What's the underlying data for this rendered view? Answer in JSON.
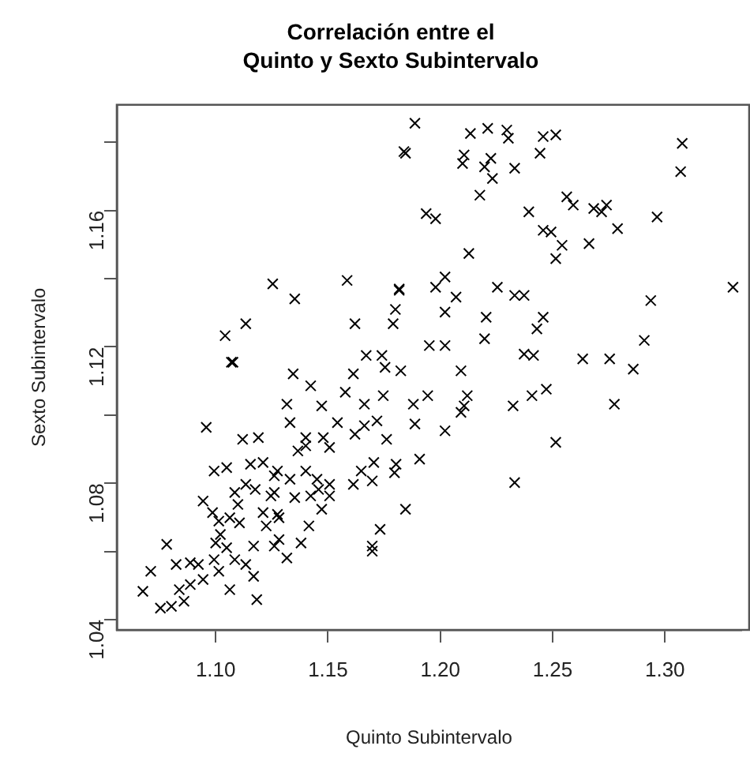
{
  "chart_data": {
    "type": "scatter",
    "title": "Correlación entre el\nQuinto y Sexto Subintervalo",
    "xlabel": "Quinto Subintervalo",
    "ylabel": "Sexto Subintervalo",
    "marker": "cross",
    "grid": false,
    "legend": false,
    "xlim": [
      1.056,
      1.334
    ],
    "ylim": [
      1.037,
      1.191
    ],
    "xticks": [
      {
        "value": 1.1,
        "label": "1.10"
      },
      {
        "value": 1.15,
        "label": "1.15"
      },
      {
        "value": 1.2,
        "label": "1.20"
      },
      {
        "value": 1.25,
        "label": "1.25"
      },
      {
        "value": 1.3,
        "label": "1.30"
      }
    ],
    "yticks": [
      {
        "value": 1.04,
        "label": "1.04"
      },
      {
        "value": 1.06,
        "label": null
      },
      {
        "value": 1.08,
        "label": "1.08"
      },
      {
        "value": 1.1,
        "label": null
      },
      {
        "value": 1.12,
        "label": "1.12"
      },
      {
        "value": 1.14,
        "label": null
      },
      {
        "value": 1.16,
        "label": "1.16"
      },
      {
        "value": 1.18,
        "label": null
      }
    ],
    "series": [
      {
        "color": "#000000",
        "x": [
          1.1838,
          1.1254,
          1.1352,
          1.1585,
          1.162,
          1.1817,
          1.18,
          1.179,
          1.1042,
          1.1134,
          1.1077,
          1.167,
          1.174,
          1.1887,
          1.1845,
          1.2134,
          1.2211,
          1.2296,
          1.2303,
          1.2458,
          1.2514,
          1.2444,
          1.2106,
          1.2099,
          1.2197,
          1.2225,
          1.2232,
          1.2331,
          1.2176,
          1.3077,
          1.307,
          1.1937,
          1.1979,
          1.2563,
          1.2592,
          1.2683,
          1.2718,
          1.274,
          1.2789,
          1.2965,
          1.2394,
          1.2458,
          1.2493,
          1.2542,
          1.2514,
          1.2662,
          1.2127,
          1.3303,
          1.2937,
          1.2908,
          1.2254,
          1.2331,
          1.2373,
          1.1817,
          1.1979,
          1.2021,
          1.207,
          1.2021,
          1.2204,
          1.2197,
          1.243,
          1.2458,
          1.1951,
          1.2021,
          1.2634,
          1.2754,
          1.2373,
          1.2415,
          1.2092,
          1.2859,
          1.212,
          1.2092,
          1.2324,
          1.2408,
          1.2472,
          1.2775,
          1.2514,
          1.2331,
          1.1345,
          1.1423,
          1.1613,
          1.1754,
          1.1824,
          1.1577,
          1.1317,
          1.1472,
          1.1662,
          1.1746,
          1.188,
          1.1944,
          1.2106,
          1.1331,
          1.1401,
          1.1479,
          1.1542,
          1.162,
          1.1662,
          1.1718,
          1.1761,
          1.1887,
          1.2021,
          1.1908,
          1.1803,
          1.1796,
          1.1704,
          1.1648,
          1.1613,
          1.1697,
          1.1845,
          1.1732,
          1.1697,
          1.1697,
          1.1451,
          1.1507,
          1.1458,
          1.1423,
          1.1507,
          1.1401,
          1.1331,
          1.1275,
          1.1352,
          1.1472,
          1.1415,
          1.138,
          1.1317,
          1.1261,
          1.1282,
          1.1246,
          1.1401,
          1.1507,
          1.1366,
          1.107,
          1.0958,
          1.0782,
          1.0711,
          1.0676,
          1.0754,
          1.0803,
          1.0859,
          1.0838,
          1.0887,
          1.0824,
          1.0887,
          1.0923,
          1.0944,
          1.0993,
          1.1014,
          1.1063,
          1.1183,
          1.1169,
          1.1085,
          1.1134,
          1.1,
          1.1049,
          1.1021,
          1.0944,
          1.0986,
          1.1014,
          1.1063,
          1.1099,
          1.1085,
          1.0993,
          1.1049,
          1.112,
          1.119,
          1.1155,
          1.1211,
          1.1134,
          1.1176,
          1.1211,
          1.1225,
          1.1169,
          1.1275,
          1.1261,
          1.1282,
          1.1106,
          1.1261
        ],
        "values": [
          1.1773,
          1.1385,
          1.1341,
          1.1395,
          1.1268,
          1.137,
          1.131,
          1.1268,
          1.1233,
          1.1268,
          1.1155,
          1.1175,
          1.1175,
          1.1856,
          1.1768,
          1.1826,
          1.1841,
          1.1836,
          1.1812,
          1.1817,
          1.1822,
          1.1768,
          1.1763,
          1.1738,
          1.1728,
          1.1753,
          1.1694,
          1.1724,
          1.1645,
          1.1797,
          1.1714,
          1.1591,
          1.1576,
          1.164,
          1.1616,
          1.1606,
          1.1596,
          1.1616,
          1.1547,
          1.1581,
          1.1596,
          1.1542,
          1.1537,
          1.1498,
          1.1459,
          1.1503,
          1.1474,
          1.1375,
          1.1336,
          1.1219,
          1.1375,
          1.1351,
          1.1351,
          1.1366,
          1.1375,
          1.1405,
          1.1346,
          1.1302,
          1.1287,
          1.1224,
          1.1253,
          1.1287,
          1.1204,
          1.1204,
          1.1165,
          1.1165,
          1.1179,
          1.1175,
          1.113,
          1.1135,
          1.1057,
          1.1008,
          1.1027,
          1.1057,
          1.1076,
          1.1032,
          1.092,
          1.0802,
          1.1121,
          1.1086,
          1.1121,
          1.114,
          1.113,
          1.1067,
          1.1032,
          1.1027,
          1.1032,
          1.1057,
          1.1032,
          1.1057,
          1.1027,
          1.0978,
          1.0934,
          1.0934,
          1.0978,
          1.0944,
          1.0969,
          1.0983,
          1.0929,
          1.0974,
          1.0954,
          1.0871,
          1.0856,
          1.0831,
          1.0861,
          1.0836,
          1.0797,
          1.0807,
          1.0724,
          1.0665,
          1.0616,
          1.0601,
          1.0812,
          1.0797,
          1.0782,
          1.0763,
          1.0763,
          1.0836,
          1.0812,
          1.0836,
          1.0758,
          1.0724,
          1.0675,
          1.0625,
          1.0581,
          1.0616,
          1.0699,
          1.0763,
          1.091,
          1.0905,
          1.0895,
          1.1155,
          1.0964,
          1.0621,
          1.0542,
          1.0483,
          1.0434,
          1.0439,
          1.0454,
          1.0488,
          1.0503,
          1.0562,
          1.0567,
          1.0562,
          1.0518,
          1.0576,
          1.0542,
          1.0488,
          1.0459,
          1.0527,
          1.0576,
          1.0562,
          1.0625,
          1.0611,
          1.065,
          1.0748,
          1.0714,
          1.0689,
          1.0699,
          1.0738,
          1.0773,
          1.0836,
          1.0846,
          1.0929,
          1.0934,
          1.0856,
          1.0861,
          1.0797,
          1.0782,
          1.0714,
          1.0675,
          1.0616,
          1.0709,
          1.0773,
          1.0635,
          1.0684,
          1.0822
        ]
      }
    ]
  }
}
